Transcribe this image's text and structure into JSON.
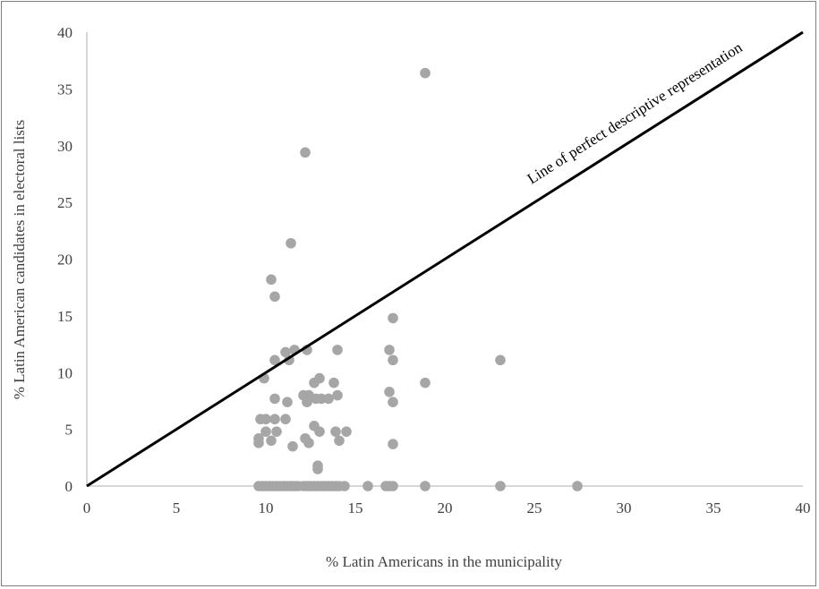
{
  "chart_data": {
    "type": "scatter",
    "xlabel": "% Latin Americans in the municipality",
    "ylabel": "% Latin American candidates in electoral lists",
    "xlim": [
      0,
      40
    ],
    "ylim": [
      0,
      40
    ],
    "xticks": [
      "0",
      "5",
      "10",
      "15",
      "20",
      "25",
      "30",
      "35",
      "40"
    ],
    "yticks": [
      "0",
      "5",
      "10",
      "15",
      "20",
      "25",
      "30",
      "35",
      "40"
    ],
    "grid": false,
    "legend": "none",
    "reference_line": {
      "label": "Line of perfect descriptive representation",
      "from": [
        0,
        0
      ],
      "to": [
        40,
        40
      ],
      "color": "#000000"
    },
    "point_color": "#a6a6a6",
    "points": [
      [
        18.9,
        36.4
      ],
      [
        12.2,
        29.4
      ],
      [
        11.4,
        21.4
      ],
      [
        10.3,
        18.2
      ],
      [
        10.5,
        16.7
      ],
      [
        17.1,
        14.8
      ],
      [
        11.1,
        11.8
      ],
      [
        11.6,
        12.0
      ],
      [
        12.3,
        12.0
      ],
      [
        14.0,
        12.0
      ],
      [
        16.9,
        12.0
      ],
      [
        10.5,
        11.1
      ],
      [
        11.3,
        11.1
      ],
      [
        17.1,
        11.1
      ],
      [
        23.1,
        11.1
      ],
      [
        9.9,
        9.5
      ],
      [
        12.7,
        9.1
      ],
      [
        13.0,
        9.5
      ],
      [
        13.8,
        9.1
      ],
      [
        18.9,
        9.1
      ],
      [
        16.9,
        8.3
      ],
      [
        12.1,
        8.0
      ],
      [
        12.4,
        8.0
      ],
      [
        14.0,
        8.0
      ],
      [
        10.5,
        7.7
      ],
      [
        11.2,
        7.4
      ],
      [
        12.3,
        7.4
      ],
      [
        12.8,
        7.7
      ],
      [
        13.1,
        7.7
      ],
      [
        13.5,
        7.7
      ],
      [
        17.1,
        7.4
      ],
      [
        9.7,
        5.9
      ],
      [
        10.0,
        5.9
      ],
      [
        10.5,
        5.9
      ],
      [
        11.1,
        5.9
      ],
      [
        12.7,
        5.3
      ],
      [
        9.6,
        4.2
      ],
      [
        10.0,
        4.8
      ],
      [
        10.3,
        4.0
      ],
      [
        10.6,
        4.8
      ],
      [
        9.6,
        3.8
      ],
      [
        11.5,
        3.5
      ],
      [
        12.2,
        4.2
      ],
      [
        12.4,
        3.8
      ],
      [
        13.0,
        4.8
      ],
      [
        13.9,
        4.8
      ],
      [
        14.1,
        4.0
      ],
      [
        14.5,
        4.8
      ],
      [
        17.1,
        3.7
      ],
      [
        12.9,
        1.8
      ],
      [
        12.9,
        1.5
      ],
      [
        9.6,
        0
      ],
      [
        9.8,
        0
      ],
      [
        10.0,
        0
      ],
      [
        10.2,
        0
      ],
      [
        10.4,
        0
      ],
      [
        10.6,
        0
      ],
      [
        10.8,
        0
      ],
      [
        11.0,
        0
      ],
      [
        11.2,
        0
      ],
      [
        11.4,
        0
      ],
      [
        11.6,
        0
      ],
      [
        11.8,
        0
      ],
      [
        12.1,
        0
      ],
      [
        12.3,
        0
      ],
      [
        12.5,
        0
      ],
      [
        12.7,
        0
      ],
      [
        12.9,
        0
      ],
      [
        13.1,
        0
      ],
      [
        13.3,
        0
      ],
      [
        13.5,
        0
      ],
      [
        13.7,
        0
      ],
      [
        13.9,
        0
      ],
      [
        14.1,
        0
      ],
      [
        14.4,
        0
      ],
      [
        15.7,
        0
      ],
      [
        16.7,
        0
      ],
      [
        16.9,
        0
      ],
      [
        17.1,
        0
      ],
      [
        18.9,
        0
      ],
      [
        23.1,
        0
      ],
      [
        27.4,
        0
      ]
    ]
  }
}
